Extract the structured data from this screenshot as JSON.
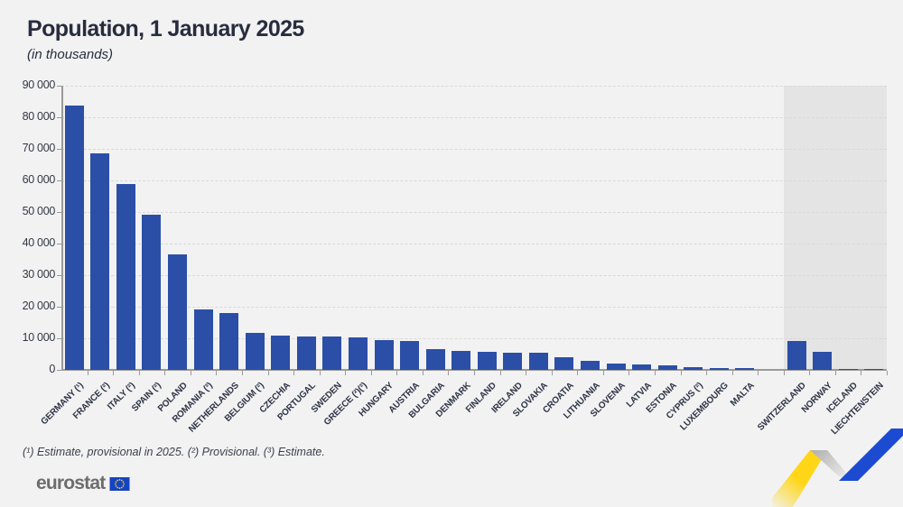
{
  "header": {
    "title": "Population, 1 January 2025",
    "subtitle": "(in thousands)"
  },
  "chart_data": {
    "type": "bar",
    "title": "Population, 1 January 2025",
    "subtitle": "(in thousands)",
    "unit": "thousands",
    "ylim": [
      0,
      90000
    ],
    "ytick_step": 10000,
    "ytick_labels": [
      "0",
      "10 000",
      "20 000",
      "30 000",
      "40 000",
      "50 000",
      "60 000",
      "70 000",
      "80 000",
      "90 000"
    ],
    "grid": "horizontal-dashed",
    "legend": "none",
    "bar_color": "#2b4ea7",
    "efta_band_color": "#e4e4e4",
    "categories": [
      "GERMANY (¹)",
      "FRANCE (²)",
      "ITALY (²)",
      "SPAIN (²)",
      "POLAND",
      "ROMANIA (³)",
      "NETHERLANDS",
      "BELGIUM (²)",
      "CZECHIA",
      "PORTUGAL",
      "SWEDEN",
      "GREECE (²)(³)",
      "HUNGARY",
      "AUSTRIA",
      "BULGARIA",
      "DENMARK",
      "FINLAND",
      "IRELAND",
      "SLOVAKIA",
      "CROATIA",
      "LITHUANIA",
      "SLOVENIA",
      "LATVIA",
      "ESTONIA",
      "CYPRUS (²)",
      "LUXEMBOURG",
      "MALTA",
      "SWITZERLAND",
      "NORWAY",
      "ICELAND",
      "LIECHTENSTEIN"
    ],
    "values": [
      83577,
      68606,
      58934,
      49078,
      36566,
      19064,
      17994,
      11856,
      10909,
      10640,
      10587,
      10404,
      9539,
      9159,
      6437,
      5992,
      5635,
      5440,
      5419,
      3862,
      2886,
      2131,
      1853,
      1369,
      980,
      681,
      574,
      9049,
      5594,
      389,
      40
    ],
    "groups": [
      "eu",
      "eu",
      "eu",
      "eu",
      "eu",
      "eu",
      "eu",
      "eu",
      "eu",
      "eu",
      "eu",
      "eu",
      "eu",
      "eu",
      "eu",
      "eu",
      "eu",
      "eu",
      "eu",
      "eu",
      "eu",
      "eu",
      "eu",
      "eu",
      "eu",
      "eu",
      "eu",
      "efta",
      "efta",
      "efta",
      "efta"
    ]
  },
  "footnote": {
    "text": "(¹) Estimate, provisional in 2025. (²) Provisional. (³) Estimate."
  },
  "logo": {
    "text": "eurostat",
    "flag_blue": "#1443c4",
    "star_yellow": "#ffd617"
  },
  "ribbon_colors": {
    "yellow": "#ffd617",
    "gray": "#c2c2c2",
    "blue": "#1c4bd2"
  }
}
